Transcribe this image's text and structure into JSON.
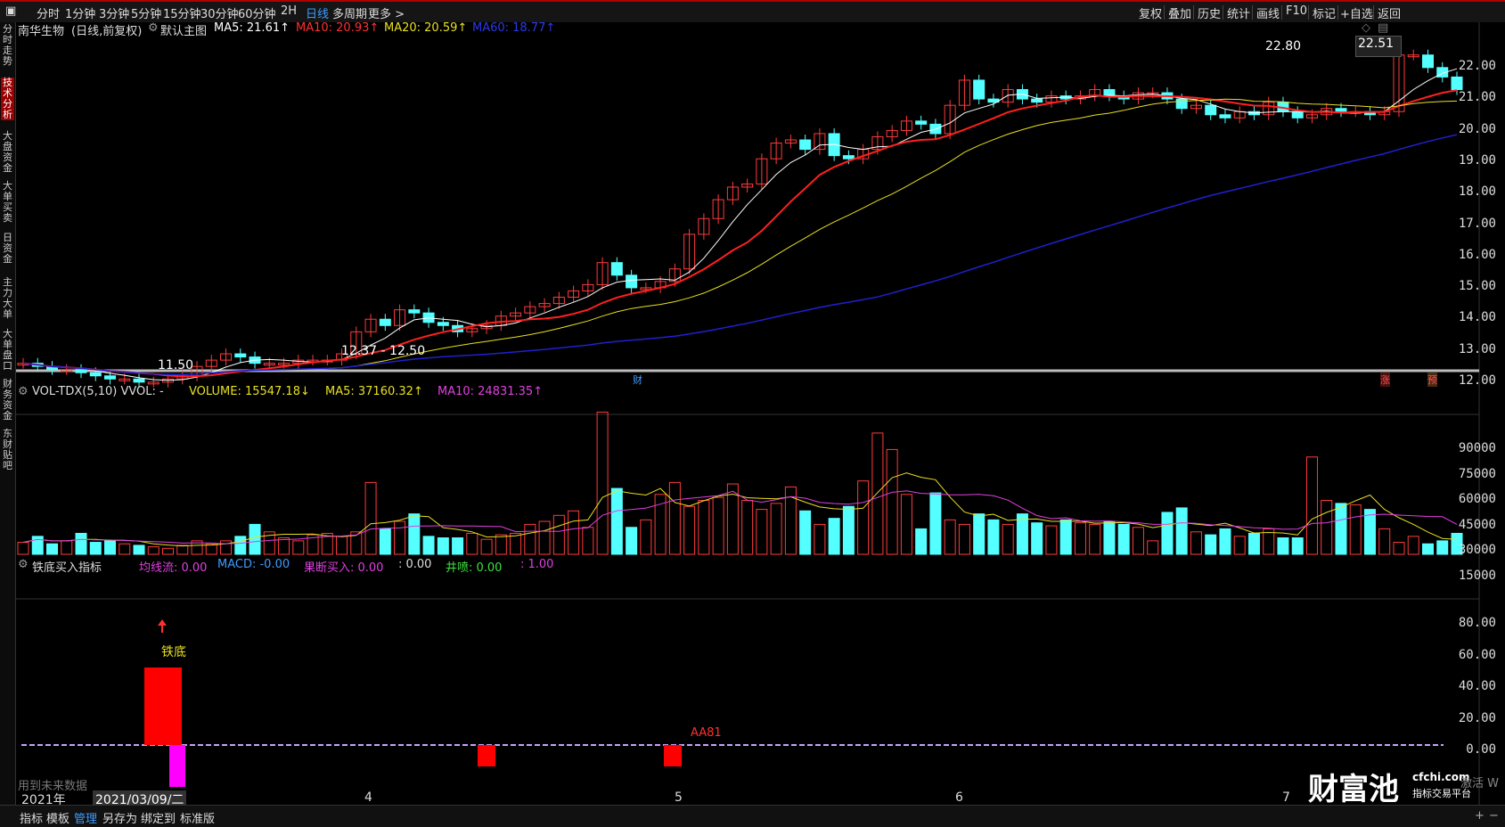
{
  "toolbar": {
    "periods": [
      "分时",
      "1分钟",
      "3分钟",
      "5分钟",
      "15分钟",
      "30分钟",
      "60分钟",
      "2H",
      "日线",
      "多周期",
      "更多 >"
    ],
    "active_period": "日线",
    "right_items": [
      "复权",
      "叠加",
      "历史",
      "统计",
      "画线",
      "F10",
      "标记",
      "+自选",
      "返回"
    ]
  },
  "sidebar": {
    "items": [
      "分时走势",
      "技术分析",
      "大盘资金",
      "大单买卖",
      "日资金",
      "主力大单",
      "大单盘口",
      "财务资金",
      "东财贴吧"
    ],
    "active": "技术分析"
  },
  "main_chart": {
    "stock_name": "南华生物",
    "period_mode": "(日线,前复权)",
    "template": "默认主图",
    "ma5": "MA5: 21.61↑",
    "ma10": "MA10: 20.93↑",
    "ma20": "MA20: 20.59↑",
    "ma60": "MA60: 18.77↑",
    "high_label": "22.80",
    "low_label": "11.50",
    "range_label": "12.37 - 12.50",
    "current_price": "22.51",
    "marker_cai": "财",
    "marker_zhang": "涨",
    "marker_yu": "预",
    "y_ticks": [
      "22.00",
      "21.00",
      "20.00",
      "19.00",
      "18.00",
      "17.00",
      "16.00",
      "15.00",
      "14.00",
      "13.00",
      "12.00"
    ]
  },
  "volume_chart": {
    "title": "VOL-TDX(5,10) VVOL: -",
    "volume": "VOLUME: 15547.18↓",
    "ma5": "MA5: 37160.32↑",
    "ma10": "MA10: 24831.35↑",
    "y_ticks": [
      "90000",
      "75000",
      "60000",
      "45000",
      "30000",
      "15000"
    ]
  },
  "indicator_chart": {
    "title": "铁底买入指标",
    "jxl": "均线流: 0.00",
    "macd": "MACD: -0.00",
    "gd": "果断买入: 0.00",
    "v4": ": 0.00",
    "jp": "井喷: 0.00",
    "v6": ": 1.00",
    "tiedi_label": "铁底",
    "aa_label": "AA81",
    "future_note": "用到未来数据",
    "y_ticks": [
      "80.00",
      "60.00",
      "40.00",
      "20.00",
      "0.00"
    ]
  },
  "x_axis": {
    "labels": [
      "2021年",
      "2021/03/09/二",
      "4",
      "5",
      "6",
      "7"
    ]
  },
  "statusbar": {
    "items": [
      "指标",
      "模板",
      "管理",
      "另存为",
      "绑定到",
      "标准版"
    ],
    "active": "管理"
  },
  "branding": {
    "logo_text": "财富池",
    "site": "cfchi.com",
    "slogan": "指标交易平台",
    "corner_text": "激活 W"
  },
  "colors": {
    "up": "#ff3b3b",
    "down": "#54ffff",
    "ma5": "#ffffff",
    "ma10": "#ff2020",
    "ma20": "#e8e020",
    "ma60": "#2020d0"
  }
}
